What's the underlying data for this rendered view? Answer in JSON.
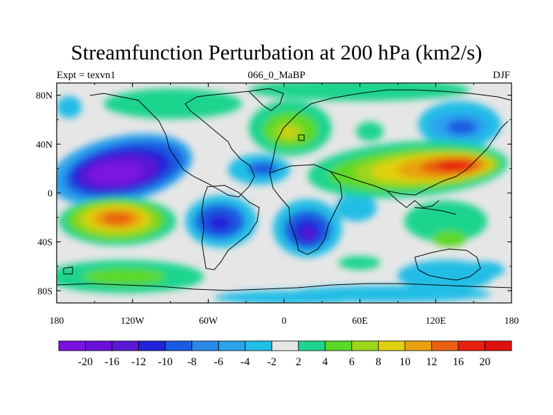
{
  "title": "Streamfunction Perturbation at 200 hPa (km2/s)",
  "left_string": "Expt = texvn1",
  "center_string": "066_0_MaBP",
  "right_string": "DJF",
  "lat_ticks": [
    "80N",
    "40N",
    "0",
    "40S",
    "80S"
  ],
  "lon_ticks": [
    "180",
    "120W",
    "60W",
    "0",
    "60E",
    "120E",
    "180"
  ],
  "colorbar": {
    "labels": [
      "-20",
      "-16",
      "-12",
      "-10",
      "-8",
      "-6",
      "-4",
      "-2",
      "2",
      "4",
      "6",
      "8",
      "10",
      "12",
      "16",
      "20"
    ],
    "colors": [
      "#7a12e0",
      "#6a10d8",
      "#5a18d4",
      "#2222d8",
      "#1a5ce0",
      "#2a8ae8",
      "#2aa2ec",
      "#22bde6",
      "#e6e6e6",
      "#1ed48e",
      "#5cd828",
      "#9ed41a",
      "#e0d010",
      "#e8a010",
      "#e86010",
      "#e82010",
      "#e01010"
    ]
  }
}
